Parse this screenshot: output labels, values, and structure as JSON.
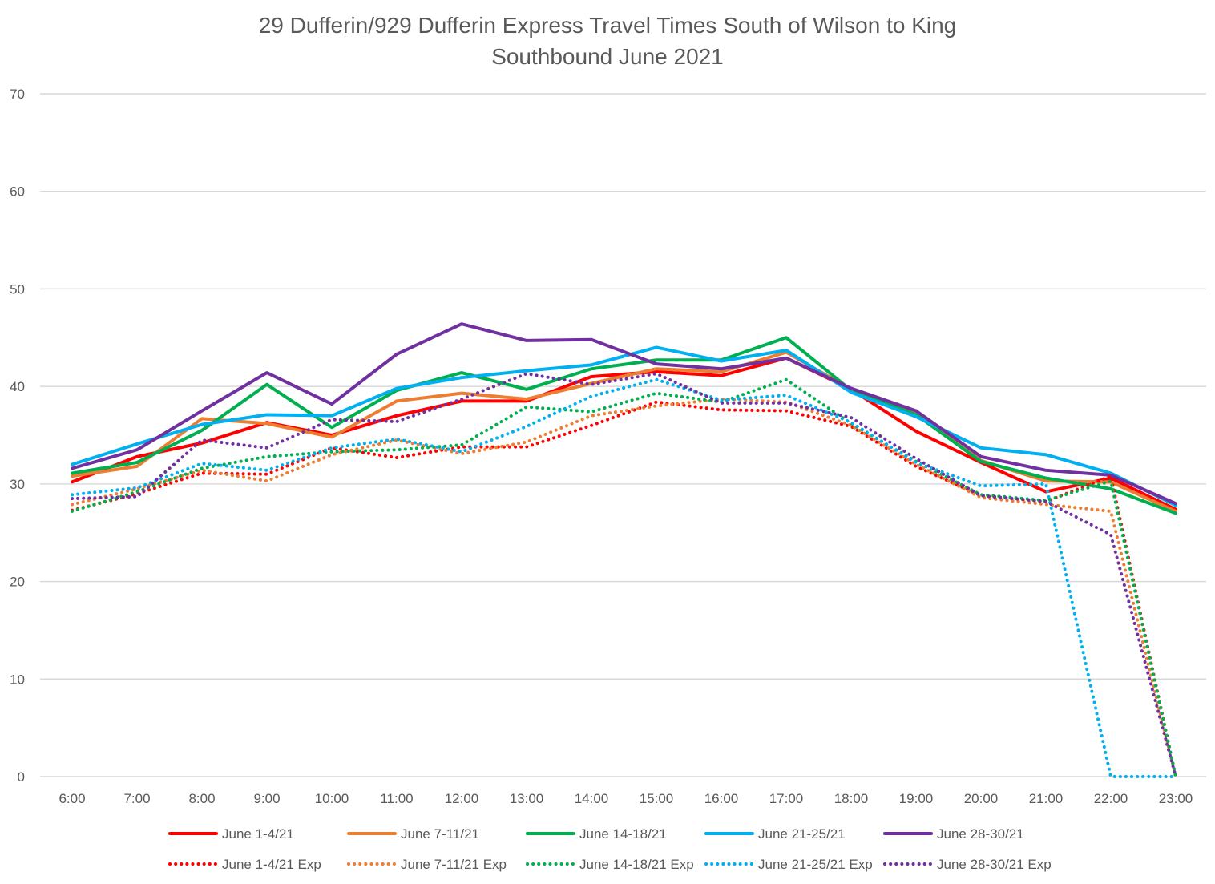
{
  "chart_data": {
    "type": "line",
    "title": "29 Dufferin/929 Dufferin Express Travel Times South of Wilson to King",
    "subtitle": "Southbound  June 2021",
    "xlabel": "",
    "ylabel": "",
    "ylim": [
      0,
      70
    ],
    "yticks": [
      0,
      10,
      20,
      30,
      40,
      50,
      60,
      70
    ],
    "grid": true,
    "legend_position": "bottom",
    "categories": [
      "6:00",
      "7:00",
      "8:00",
      "9:00",
      "10:00",
      "11:00",
      "12:00",
      "13:00",
      "14:00",
      "15:00",
      "16:00",
      "17:00",
      "18:00",
      "19:00",
      "20:00",
      "21:00",
      "22:00",
      "23:00"
    ],
    "series": [
      {
        "name": "June 1-4/21",
        "color": "#ff0000",
        "style": "solid",
        "values": [
          30.2,
          32.8,
          34.2,
          36.3,
          35.0,
          37.0,
          38.5,
          38.5,
          41.0,
          41.5,
          41.1,
          42.9,
          39.7,
          35.4,
          32.2,
          29.2,
          30.6,
          27.4
        ]
      },
      {
        "name": "June 7-11/21",
        "color": "#ed7d31",
        "style": "solid",
        "values": [
          30.8,
          31.8,
          36.7,
          36.2,
          34.8,
          38.5,
          39.3,
          38.7,
          40.3,
          41.8,
          41.5,
          43.5,
          39.7,
          37.2,
          32.4,
          30.3,
          30.2,
          27.2
        ]
      },
      {
        "name": "June 14-18/21",
        "color": "#00b050",
        "style": "solid",
        "values": [
          31.1,
          32.2,
          35.5,
          40.2,
          35.8,
          39.6,
          41.4,
          39.7,
          41.8,
          42.7,
          42.7,
          45.0,
          39.6,
          37.1,
          32.3,
          30.6,
          29.5,
          27.0
        ]
      },
      {
        "name": "June 21-25/21",
        "color": "#00b0f0",
        "style": "solid",
        "values": [
          32.0,
          34.1,
          36.1,
          37.1,
          37.0,
          39.8,
          40.9,
          41.6,
          42.2,
          44.0,
          42.6,
          43.7,
          39.4,
          36.9,
          33.7,
          33.0,
          31.1,
          27.8
        ]
      },
      {
        "name": "June 28-30/21",
        "color": "#7030a0",
        "style": "solid",
        "values": [
          31.6,
          33.5,
          37.5,
          41.4,
          38.2,
          43.3,
          46.4,
          44.7,
          44.8,
          42.3,
          41.8,
          42.9,
          39.8,
          37.5,
          32.8,
          31.4,
          30.9,
          28.0
        ]
      },
      {
        "name": "June 1-4/21 Exp",
        "color": "#ff0000",
        "style": "dotted",
        "values": [
          27.3,
          29.0,
          31.1,
          31.0,
          33.7,
          32.7,
          33.8,
          33.8,
          36.0,
          38.4,
          37.6,
          37.5,
          35.9,
          31.8,
          28.8,
          28.2,
          30.8,
          0
        ]
      },
      {
        "name": "June 7-11/21 Exp",
        "color": "#ed7d31",
        "style": "dotted",
        "values": [
          27.9,
          29.5,
          31.4,
          30.3,
          33.0,
          34.5,
          33.1,
          34.3,
          37.0,
          38.0,
          38.7,
          38.4,
          36.0,
          32.0,
          28.6,
          27.9,
          27.2,
          0
        ]
      },
      {
        "name": "June 14-18/21 Exp",
        "color": "#00b050",
        "style": "dotted",
        "values": [
          27.2,
          29.2,
          31.6,
          32.8,
          33.3,
          33.5,
          34.0,
          37.9,
          37.4,
          39.3,
          38.4,
          40.7,
          36.2,
          32.3,
          28.9,
          28.3,
          30.3,
          0
        ]
      },
      {
        "name": "June 21-25/21 Exp",
        "color": "#00b0f0",
        "style": "dotted",
        "values": [
          28.9,
          29.6,
          32.1,
          31.4,
          33.7,
          34.6,
          33.3,
          35.9,
          39.0,
          40.7,
          38.6,
          39.1,
          36.3,
          32.2,
          29.8,
          30.0,
          0,
          0
        ]
      },
      {
        "name": "June 28-30/21 Exp",
        "color": "#7030a0",
        "style": "dotted",
        "values": [
          28.5,
          28.7,
          34.5,
          33.7,
          36.6,
          36.4,
          38.7,
          41.3,
          40.2,
          41.3,
          38.3,
          38.3,
          36.8,
          32.6,
          28.8,
          28.2,
          24.8,
          0
        ]
      }
    ]
  }
}
